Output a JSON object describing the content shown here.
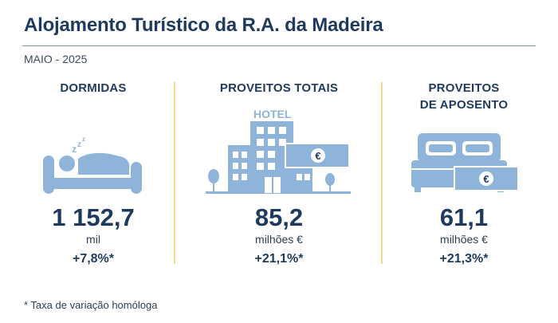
{
  "header": {
    "title": "Alojamento Turístico da R.A. da Madeira",
    "period": "MAIO - 2025"
  },
  "colors": {
    "navy": "#1f3a5f",
    "icon_blue": "#8fb4d9",
    "separator_yellow": "#f2dc8a"
  },
  "indicators": [
    {
      "heading": "DORMIDAS",
      "icon": "sleeping-person-icon",
      "value": "1 152,7",
      "unit": "mil",
      "change": "+7,8%*"
    },
    {
      "heading": "PROVEITOS TOTAIS",
      "icon": "hotel-building-icon",
      "icon_label": "HOTEL",
      "icon_symbol": "€",
      "value": "85,2",
      "unit": "milhões €",
      "change": "+21,1%*"
    },
    {
      "heading_line1": "PROVEITOS",
      "heading_line2": "DE APOSENTO",
      "icon": "bed-with-money-icon",
      "icon_symbol": "€",
      "value": "61,1",
      "unit": "milhões €",
      "change": "+21,3%*"
    }
  ],
  "footnote": "* Taxa de variação homóloga"
}
